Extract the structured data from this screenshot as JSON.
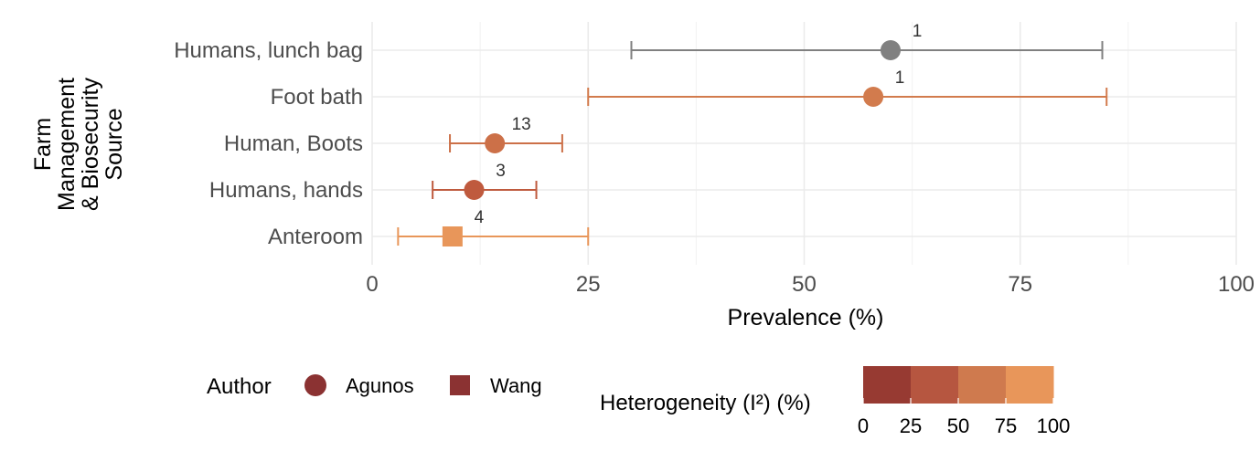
{
  "chart_data": {
    "type": "forest",
    "xlabel": "Prevalence (%)",
    "ylabel_lines": [
      "Farm",
      "Management",
      "& Biosecurity",
      "Source"
    ],
    "xlim": [
      0,
      100
    ],
    "xticks": [
      0,
      25,
      50,
      75,
      100
    ],
    "grid": true,
    "rows": [
      {
        "label": "Humans, lunch bag",
        "estimate": 60.0,
        "lower": 30.0,
        "upper": 84.5,
        "count": "1",
        "author": "Agunos",
        "heterogeneity": null,
        "color": "#808080"
      },
      {
        "label": "Foot bath",
        "estimate": 58.0,
        "lower": 25.0,
        "upper": 85.0,
        "count": "1",
        "author": "Agunos",
        "heterogeneity": 70,
        "color": "#d27b4d"
      },
      {
        "label": "Human, Boots",
        "estimate": 14.2,
        "lower": 9.0,
        "upper": 22.0,
        "count": "13",
        "author": "Agunos",
        "heterogeneity": 60,
        "color": "#cc7048"
      },
      {
        "label": "Humans, hands",
        "estimate": 11.8,
        "lower": 7.0,
        "upper": 19.0,
        "count": "3",
        "author": "Agunos",
        "heterogeneity": 35,
        "color": "#bf5a3e"
      },
      {
        "label": "Anteroom",
        "estimate": 9.3,
        "lower": 3.0,
        "upper": 25.0,
        "count": "4",
        "author": "Wang",
        "heterogeneity": 90,
        "color": "#e8965a"
      }
    ],
    "legend_author": {
      "title": "Author",
      "items": [
        {
          "label": "Agunos",
          "shape": "circle"
        },
        {
          "label": "Wang",
          "shape": "square"
        }
      ],
      "color": "#8b3232"
    },
    "legend_heterogeneity": {
      "title": "Heterogeneity (I²) (%)",
      "ticks": [
        "0",
        "25",
        "50",
        "75",
        "100"
      ],
      "colors": [
        "#973a32",
        "#b65640",
        "#cf7a4e",
        "#e8965a"
      ]
    }
  }
}
